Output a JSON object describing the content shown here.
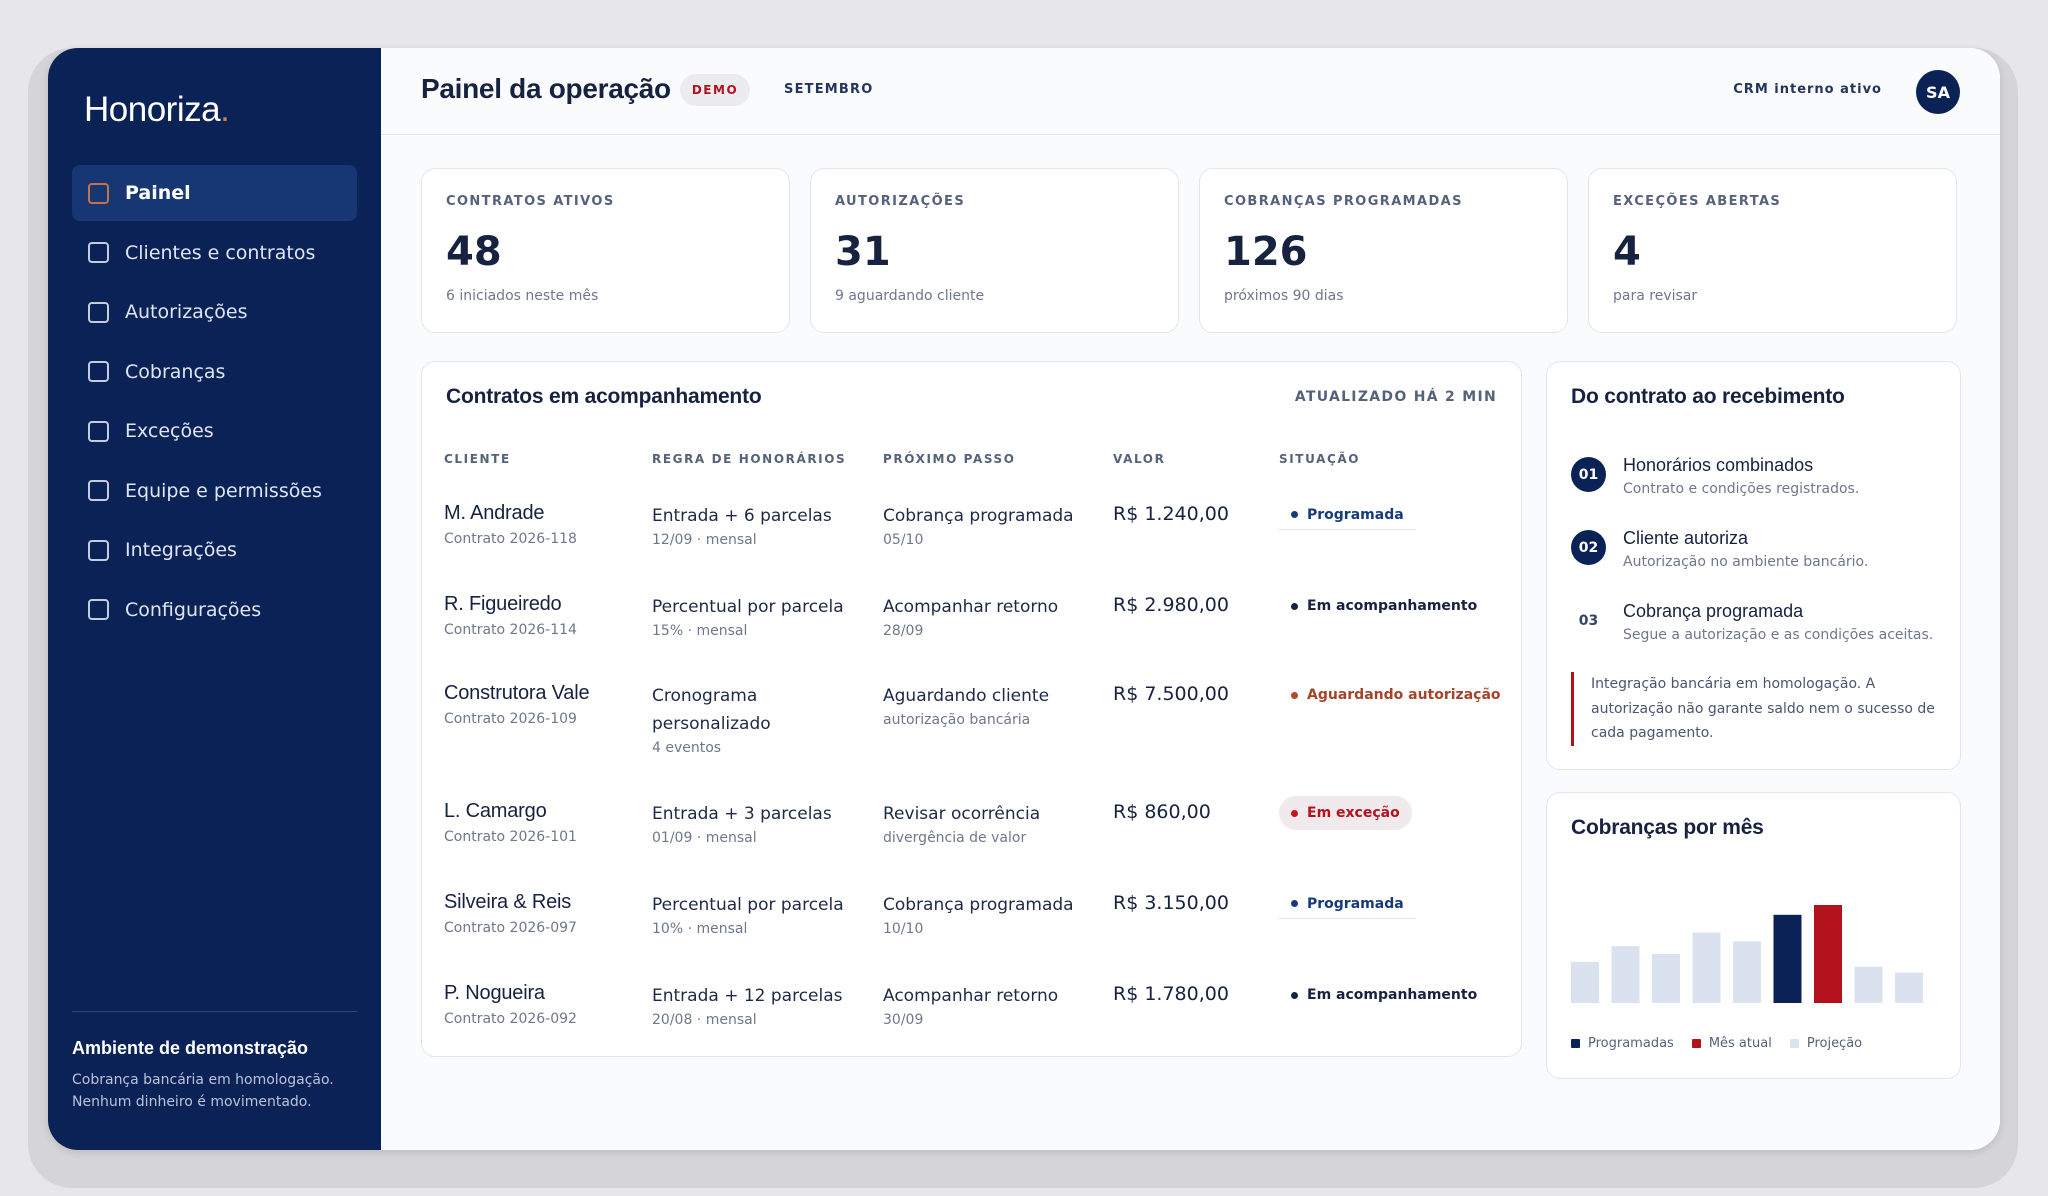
{
  "app": {
    "brand": "Honoriza",
    "brand_dot": ".",
    "page_title": "Painel da operação",
    "badge": "DEMO",
    "month": "SETEMBRO",
    "crm_status": "CRM interno ativo",
    "avatar_initials": "SA"
  },
  "sidebar": {
    "items": [
      {
        "label": "Painel",
        "active": true
      },
      {
        "label": "Clientes e contratos"
      },
      {
        "label": "Autorizações"
      },
      {
        "label": "Cobranças"
      },
      {
        "label": "Exceções"
      },
      {
        "label": "Equipe e permissões"
      },
      {
        "label": "Integrações"
      },
      {
        "label": "Configurações"
      }
    ],
    "env_title": "Ambiente de demonstração",
    "env_text": "Cobrança bancária em homologação. Nenhum dinheiro é movimentado."
  },
  "kpis": [
    {
      "label": "CONTRATOS ATIVOS",
      "value": "48",
      "sub": "6 iniciados neste mês"
    },
    {
      "label": "AUTORIZAÇÕES",
      "value": "31",
      "sub": "9 aguardando cliente"
    },
    {
      "label": "COBRANÇAS PROGRAMADAS",
      "value": "126",
      "sub": "próximos 90 dias"
    },
    {
      "label": "EXCEÇÕES ABERTAS",
      "value": "4",
      "sub": "para revisar"
    }
  ],
  "contracts": {
    "title": "Contratos em acompanhamento",
    "updated": "ATUALIZADO HÁ 2 MIN",
    "headers": [
      "CLIENTE",
      "REGRA DE HONORÁRIOS",
      "PRÓXIMO PASSO",
      "VALOR",
      "SITUAÇÃO"
    ],
    "rows": [
      {
        "client": "M. Andrade",
        "contract": "Contrato 2026-118",
        "rule": "Entrada + 6 parcelas",
        "rule_sub": "12/09 · mensal",
        "step": "Cobrança programada",
        "step_sub": "05/10",
        "amount": "R$ 1.240,00",
        "status": "Programada",
        "status_kind": "blue"
      },
      {
        "client": "R. Figueiredo",
        "contract": "Contrato 2026-114",
        "rule": "Percentual por parcela",
        "rule_sub": "15% · mensal",
        "step": "Acompanhar retorno",
        "step_sub": "28/09",
        "amount": "R$ 2.980,00",
        "status": "Em acompanhamento",
        "status_kind": "dark"
      },
      {
        "client": "Construtora Vale",
        "contract": "Contrato 2026-109",
        "rule": "Cronograma personalizado",
        "rule_sub": "4 eventos",
        "step": "Aguardando cliente",
        "step_sub": "autorização bancária",
        "amount": "R$ 7.500,00",
        "status": "Aguardando autorização",
        "status_kind": "orange"
      },
      {
        "client": "L. Camargo",
        "contract": "Contrato 2026-101",
        "rule": "Entrada + 3 parcelas",
        "rule_sub": "01/09 · mensal",
        "step": "Revisar ocorrência",
        "step_sub": "divergência de valor",
        "amount": "R$ 860,00",
        "status": "Em exceção",
        "status_kind": "red"
      },
      {
        "client": "Silveira & Reis",
        "contract": "Contrato 2026-097",
        "rule": "Percentual por parcela",
        "rule_sub": "10% · mensal",
        "step": "Cobrança programada",
        "step_sub": "10/10",
        "amount": "R$ 3.150,00",
        "status": "Programada",
        "status_kind": "blue"
      },
      {
        "client": "P. Nogueira",
        "contract": "Contrato 2026-092",
        "rule": "Entrada + 12 parcelas",
        "rule_sub": "20/08 · mensal",
        "step": "Acompanhar retorno",
        "step_sub": "30/09",
        "amount": "R$ 1.780,00",
        "status": "Em acompanhamento",
        "status_kind": "dark"
      }
    ]
  },
  "flow": {
    "title": "Do contrato ao recebimento",
    "steps": [
      {
        "num": "01",
        "title": "Honorários combinados",
        "sub": "Contrato e condições registrados."
      },
      {
        "num": "02",
        "title": "Cliente autoriza",
        "sub": "Autorização no ambiente bancário."
      },
      {
        "num": "03",
        "title": "Cobrança programada",
        "sub": "Segue a autorização e as condições aceitas."
      }
    ],
    "note": "Integração bancária em homologação. A autorização não garante saldo nem o sucesso de cada pagamento."
  },
  "chart_data": {
    "type": "bar",
    "title": "Cobranças por mês",
    "values": [
      42,
      58,
      50,
      72,
      63,
      90,
      100,
      37,
      31
    ],
    "kinds": [
      "projecao",
      "projecao",
      "projecao",
      "projecao",
      "projecao",
      "programadas",
      "atual",
      "projecao",
      "projecao"
    ],
    "legend": [
      {
        "name": "Programadas",
        "color": "#0b2257"
      },
      {
        "name": "Mês atual",
        "color": "#b3121d"
      },
      {
        "name": "Projeção",
        "color": "#dbe2ef"
      }
    ],
    "ylim": [
      0,
      100
    ]
  }
}
